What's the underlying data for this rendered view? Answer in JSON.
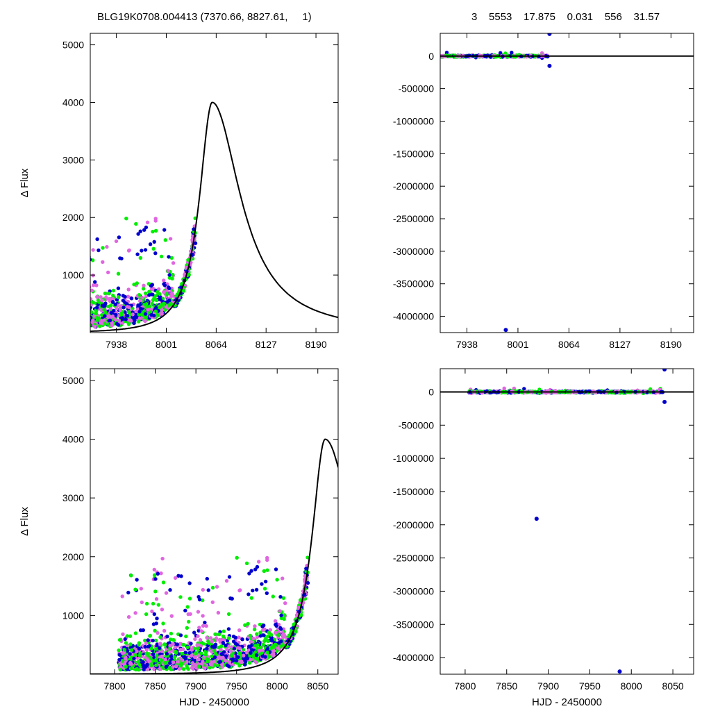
{
  "header": {
    "title": "BLG19K0708.004413 (7370.66, 8827.61,     1)",
    "stats": "3    5553    17.875    0.031    556    31.57"
  },
  "colors": {
    "series_a": "#0000cc",
    "series_b": "#e066e0",
    "series_c": "#00ee00",
    "model": "#000000"
  },
  "chart_data": [
    {
      "type": "scatter",
      "panel": "top-left",
      "xlabel": "",
      "ylabel": "Δ Flux",
      "xlim": [
        7905,
        8218
      ],
      "ylim": [
        0,
        5200
      ],
      "xticks": [
        7938,
        8001,
        8064,
        8127,
        8190
      ],
      "yticks": [
        1000,
        2000,
        3000,
        4000,
        5000
      ],
      "model": {
        "peak_x": 8059,
        "peak_y": 4000,
        "rise_tau": 18,
        "fall_tau": 40,
        "baseline": 0
      }
    },
    {
      "type": "scatter",
      "panel": "top-right",
      "xlabel": "",
      "ylabel": "",
      "xlim": [
        7905,
        8218
      ],
      "ylim": [
        -4250000,
        350000
      ],
      "xticks": [
        7938,
        8001,
        8064,
        8127,
        8190
      ],
      "yticks": [
        0,
        -500000,
        -1000000,
        -1500000,
        -2000000,
        -2500000,
        -3000000,
        -3500000,
        -4000000
      ],
      "ytick_labels": [
        "0",
        "-500000",
        "-1000000",
        "-1500000",
        "-2000000",
        "-2500000",
        "-3000000",
        "-3500000",
        "-4000000"
      ],
      "outliers": [
        {
          "x": 8040,
          "y": 340000
        },
        {
          "x": 7986,
          "y": -4210000
        },
        {
          "x": 8040,
          "y": -150000
        }
      ]
    },
    {
      "type": "scatter",
      "panel": "bottom-left",
      "xlabel": "HJD - 2450000",
      "ylabel": "Δ Flux",
      "xlim": [
        7770,
        8075
      ],
      "ylim": [
        0,
        5200
      ],
      "xticks": [
        7800,
        7850,
        7900,
        7950,
        8000,
        8050
      ],
      "yticks": [
        1000,
        2000,
        3000,
        4000,
        5000
      ],
      "model": {
        "peak_x": 8059,
        "peak_y": 4000,
        "rise_tau": 18,
        "fall_tau": 40,
        "baseline": 0
      }
    },
    {
      "type": "scatter",
      "panel": "bottom-right",
      "xlabel": "HJD - 2450000",
      "ylabel": "",
      "xlim": [
        7770,
        8075
      ],
      "ylim": [
        -4250000,
        350000
      ],
      "xticks": [
        7800,
        7850,
        7900,
        7950,
        8000,
        8050
      ],
      "yticks": [
        0,
        -500000,
        -1000000,
        -1500000,
        -2000000,
        -2500000,
        -3000000,
        -3500000,
        -4000000
      ],
      "ytick_labels": [
        "0",
        "-500000",
        "-1000000",
        "-1500000",
        "-2000000",
        "-2500000",
        "-3000000",
        "-3500000",
        "-4000000"
      ],
      "outliers": [
        {
          "x": 8040,
          "y": 340000
        },
        {
          "x": 7886,
          "y": -1910000
        },
        {
          "x": 7986,
          "y": -4210000
        },
        {
          "x": 8040,
          "y": -150000
        }
      ]
    }
  ]
}
